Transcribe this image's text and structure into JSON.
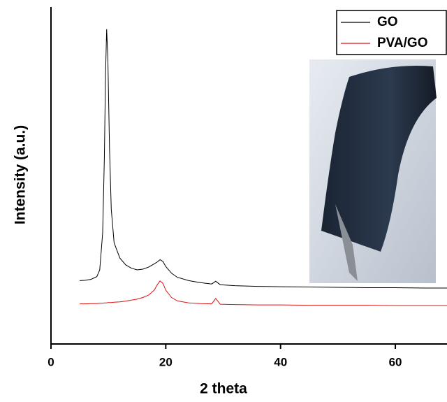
{
  "chart_data": {
    "type": "line",
    "xlabel": "2 theta",
    "ylabel": "Intensity (a.u.)",
    "x": [
      5,
      6,
      7,
      8,
      8.5,
      9,
      9.3,
      9.5,
      9.7,
      9.9,
      10.2,
      10.5,
      11,
      12,
      13,
      14,
      15,
      16,
      17,
      18,
      18.5,
      19,
      19.5,
      20,
      21,
      22,
      24,
      26,
      28,
      28.7,
      29.5,
      32,
      36,
      40,
      45,
      50,
      55,
      60,
      65,
      69
    ],
    "series": [
      {
        "name": "GO",
        "color": "#000000",
        "values": [
          18.8,
          18.9,
          19.2,
          20,
          22,
          33,
          55,
          80,
          93.4,
          85,
          58,
          40,
          30,
          25.5,
          23.5,
          22.5,
          22,
          22.2,
          22.8,
          23.8,
          24.3,
          25,
          24.5,
          23,
          21,
          19.8,
          18.8,
          18.2,
          17.8,
          18.6,
          17.6,
          17.3,
          17.1,
          17,
          16.9,
          16.8,
          16.7,
          16.7,
          16.6,
          16.6
        ]
      },
      {
        "name": "PVA/GO",
        "color": "#dd1111",
        "values": [
          11.9,
          11.9,
          12,
          12,
          12.1,
          12.1,
          12.2,
          12.2,
          12.2,
          12.3,
          12.3,
          12.3,
          12.4,
          12.5,
          12.7,
          13,
          13.3,
          13.8,
          14.5,
          16,
          17.5,
          18.7,
          18,
          16,
          13.8,
          12.8,
          12.2,
          12,
          11.9,
          13.5,
          11.8,
          11.7,
          11.6,
          11.6,
          11.5,
          11.5,
          11.5,
          11.4,
          11.4,
          11.4
        ]
      }
    ],
    "xlim": [
      0,
      69
    ],
    "xticks": [
      0,
      20,
      40,
      60
    ],
    "ylim": [
      0,
      100
    ],
    "legend": "upper right"
  }
}
